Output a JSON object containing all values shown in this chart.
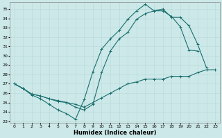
{
  "xlabel": "Humidex (Indice chaleur)",
  "xlim": [
    -0.5,
    23.5
  ],
  "ylim": [
    22.8,
    35.7
  ],
  "xticks": [
    0,
    1,
    2,
    3,
    4,
    5,
    6,
    7,
    8,
    9,
    10,
    11,
    12,
    13,
    14,
    15,
    16,
    17,
    18,
    19,
    20,
    21,
    22,
    23
  ],
  "yticks": [
    23,
    24,
    25,
    26,
    27,
    28,
    29,
    30,
    31,
    32,
    33,
    34,
    35
  ],
  "bg_color": "#cce8e8",
  "line_color": "#1a6e6e",
  "grid_major_color": "#b8d8d8",
  "grid_minor_color": "#d0e8e8",
  "line1_x": [
    0,
    1,
    2,
    3,
    4,
    5,
    6,
    7,
    8,
    9,
    10,
    11,
    12,
    13,
    14,
    15,
    16,
    17,
    18,
    19,
    20,
    21
  ],
  "line1_y": [
    27.0,
    26.5,
    25.8,
    25.4,
    24.8,
    24.2,
    23.8,
    23.2,
    25.3,
    28.3,
    30.7,
    31.8,
    32.7,
    33.9,
    34.8,
    35.5,
    34.8,
    34.8,
    34.2,
    33.1,
    30.6,
    30.5
  ],
  "line2_x": [
    0,
    1,
    2,
    3,
    4,
    5,
    6,
    7,
    8,
    9,
    10,
    11,
    12,
    13,
    14,
    15,
    16,
    17,
    18,
    19,
    20,
    21,
    22,
    23
  ],
  "line2_y": [
    27.0,
    26.5,
    25.9,
    25.7,
    25.4,
    25.1,
    25.0,
    24.5,
    24.2,
    24.8,
    28.2,
    30.5,
    31.8,
    32.5,
    33.9,
    34.5,
    34.8,
    35.0,
    34.1,
    34.1,
    33.2,
    31.2,
    28.7,
    null
  ],
  "line3_x": [
    0,
    1,
    2,
    3,
    4,
    5,
    6,
    7,
    8,
    9,
    10,
    11,
    12,
    13,
    14,
    15,
    16,
    17,
    18,
    19,
    20,
    21,
    22,
    23
  ],
  "line3_y": [
    27.0,
    26.5,
    25.9,
    25.7,
    25.4,
    25.2,
    25.0,
    24.8,
    24.5,
    25.0,
    25.5,
    26.0,
    26.5,
    27.0,
    27.2,
    27.5,
    27.5,
    27.5,
    27.8,
    27.8,
    27.8,
    28.2,
    28.5,
    28.5
  ]
}
